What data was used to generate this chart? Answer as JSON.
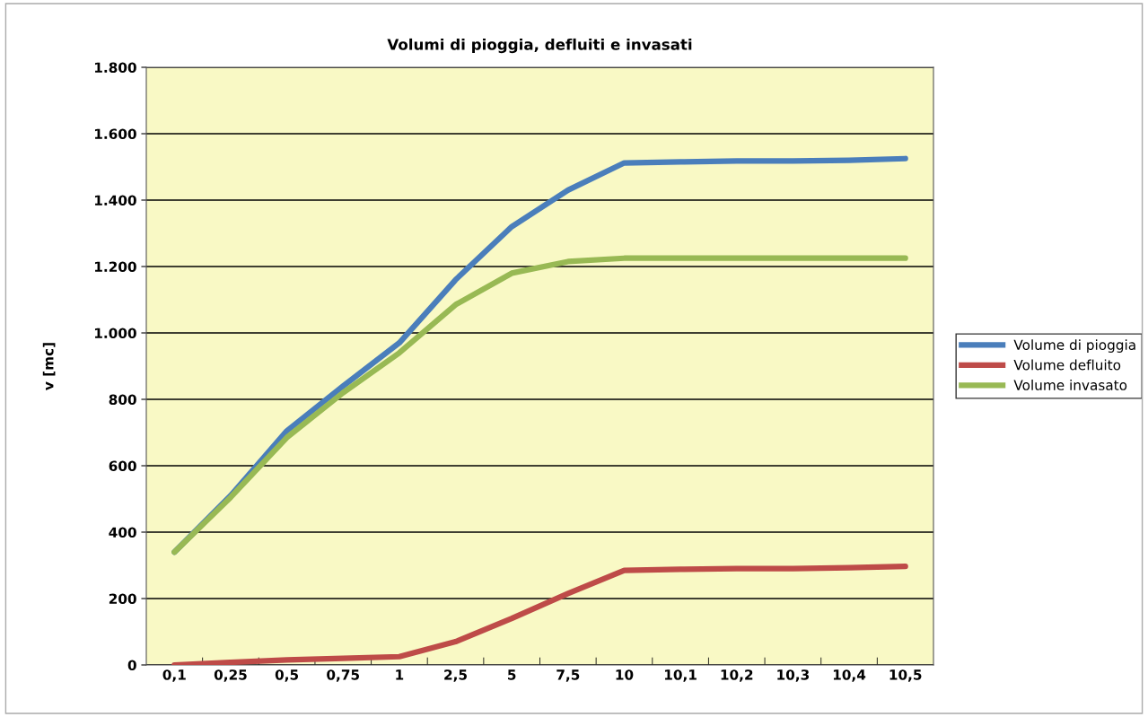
{
  "chart_data": {
    "type": "line",
    "title": "Volumi di pioggia, defluiti e invasati",
    "ylabel": "v [mc]",
    "categories": [
      "0,1",
      "0,25",
      "0,5",
      "0,75",
      "1",
      "2,5",
      "5",
      "7,5",
      "10",
      "10,1",
      "10,2",
      "10,3",
      "10,4",
      "10,5"
    ],
    "series": [
      {
        "name": "Volume di pioggia",
        "color": "#4a7ebb",
        "values": [
          340,
          510,
          705,
          840,
          970,
          1160,
          1320,
          1430,
          1512,
          1515,
          1518,
          1518,
          1520,
          1525
        ]
      },
      {
        "name": "Volume defluito",
        "color": "#be4b48",
        "values": [
          0,
          8,
          15,
          20,
          25,
          70,
          140,
          215,
          285,
          288,
          290,
          290,
          293,
          297
        ]
      },
      {
        "name": "Volume invasato",
        "color": "#98b954",
        "values": [
          340,
          505,
          685,
          820,
          940,
          1085,
          1180,
          1215,
          1225,
          1225,
          1225,
          1225,
          1225,
          1225
        ]
      }
    ],
    "ylim": [
      0,
      1800
    ],
    "yticks": [
      0,
      200,
      400,
      600,
      800,
      {
        "value": 1000,
        "label": "1.000"
      },
      {
        "value": 1200,
        "label": "1.200"
      },
      {
        "value": 1400,
        "label": "1.400"
      },
      {
        "value": 1600,
        "label": "1.600"
      },
      {
        "value": 1800,
        "label": "1.800"
      }
    ],
    "grid": "y",
    "legend": "right",
    "marker": "none",
    "line_style": "solid"
  }
}
